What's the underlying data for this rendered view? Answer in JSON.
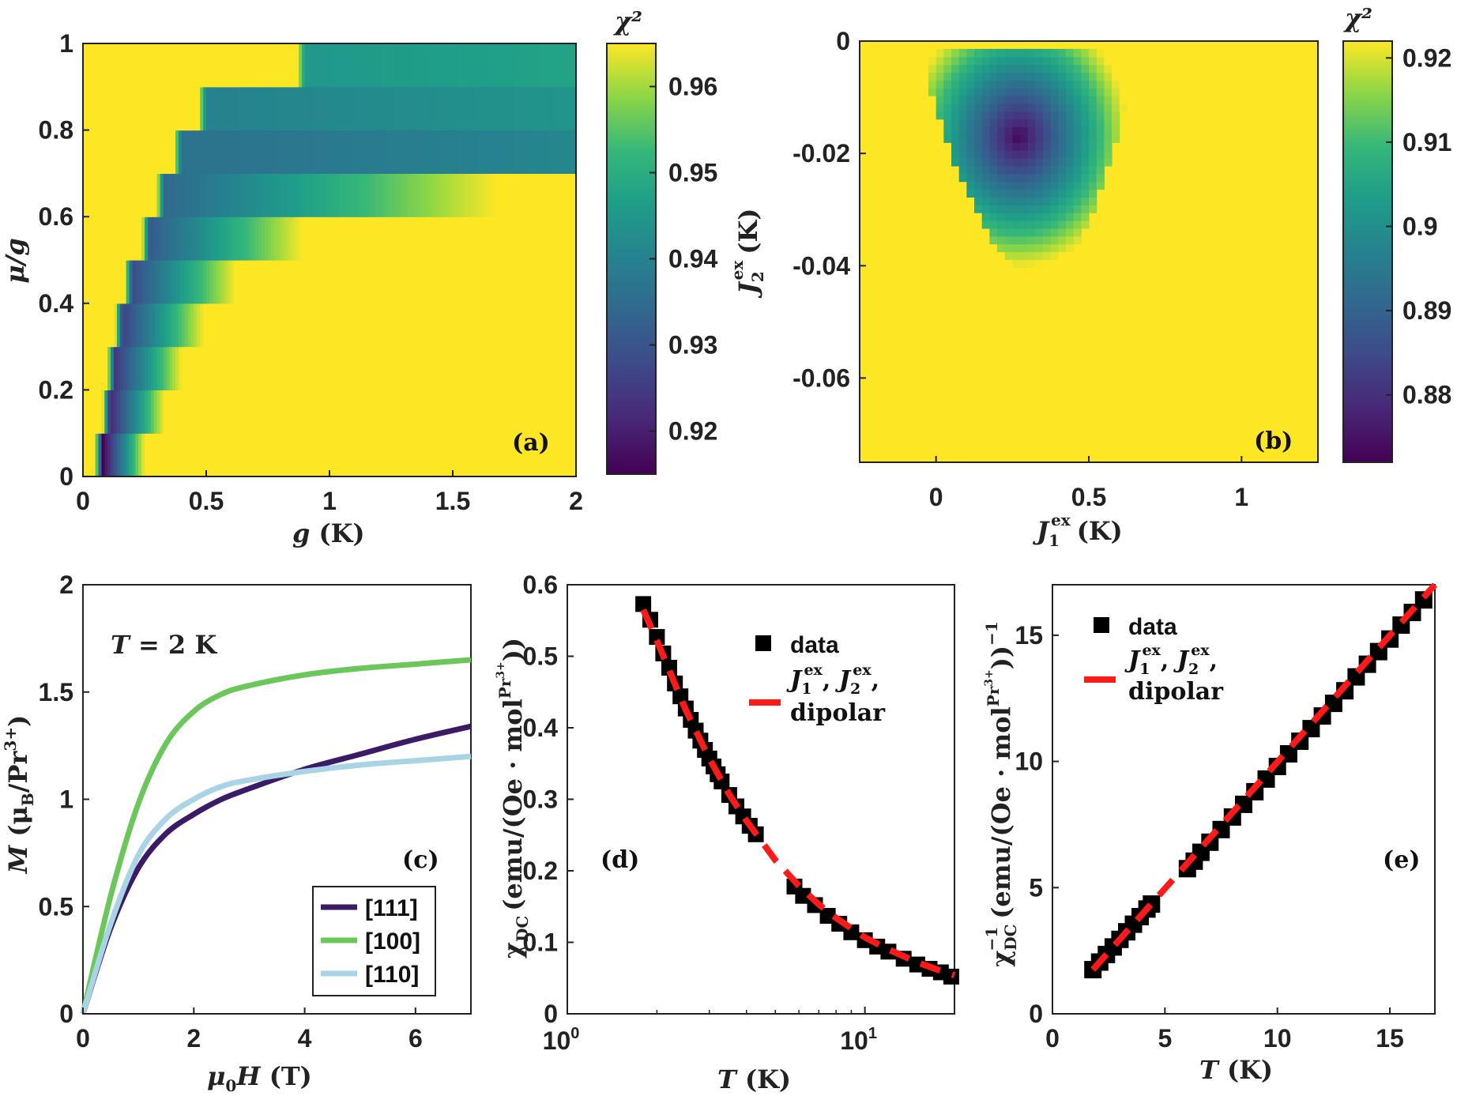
{
  "chart_data": [
    {
      "panel": "(a)",
      "type": "heatmap",
      "xlabel": "g (K)",
      "ylabel": "μ/g",
      "xlim": [
        0,
        2
      ],
      "ylim": [
        0,
        1
      ],
      "xticks": [
        "0",
        "0.5",
        "1",
        "1.5",
        "2"
      ],
      "yticks": [
        "0",
        "0.2",
        "0.4",
        "0.6",
        "0.8",
        "1"
      ],
      "colorbar": {
        "label": "χ²",
        "range": [
          0.915,
          0.965
        ],
        "ticks": [
          "0.92",
          "0.93",
          "0.94",
          "0.95",
          "0.96"
        ]
      },
      "bands": [
        {
          "row": 0,
          "g_min": 0.08,
          "g_width": 0.17,
          "chi_min": 0.915
        },
        {
          "row": 1,
          "g_min": 0.11,
          "g_width": 0.22,
          "chi_min": 0.921
        },
        {
          "row": 2,
          "g_min": 0.13,
          "g_width": 0.27,
          "chi_min": 0.924
        },
        {
          "row": 3,
          "g_min": 0.16,
          "g_width": 0.33,
          "chi_min": 0.926
        },
        {
          "row": 4,
          "g_min": 0.2,
          "g_width": 0.42,
          "chi_min": 0.928
        },
        {
          "row": 5,
          "g_min": 0.27,
          "g_width": 0.62,
          "chi_min": 0.931
        },
        {
          "row": 6,
          "g_min": 0.33,
          "g_width": 1.35,
          "chi_min": 0.934
        },
        {
          "row": 7,
          "g_min": 0.4,
          "g_width": 9.0,
          "chi_min": 0.936
        },
        {
          "row": 8,
          "g_min": 0.5,
          "g_width": 9.0,
          "chi_min": 0.94
        },
        {
          "row": 9,
          "g_min": 0.9,
          "g_width": 9.0,
          "chi_min": 0.945
        }
      ]
    },
    {
      "panel": "(b)",
      "type": "heatmap",
      "xlabel": "J1ex (K)",
      "ylabel": "J2ex (K)",
      "xlim": [
        -0.25,
        1.25
      ],
      "ylim": [
        -0.075,
        0.0
      ],
      "xticks": [
        "0",
        "0.5",
        "1"
      ],
      "yticks": [
        "0",
        "-0.02",
        "-0.04",
        "-0.06"
      ],
      "colorbar": {
        "label": "χ²",
        "range": [
          0.872,
          0.922
        ],
        "ticks": [
          "0.88",
          "0.89",
          "0.9",
          "0.91",
          "0.92"
        ]
      },
      "minimum": {
        "J1": 0.27,
        "J2": -0.017,
        "chi": 0.873
      },
      "region_chi_max": 0.922
    },
    {
      "panel": "(c)",
      "type": "line",
      "annotation": "T = 2 K",
      "xlabel": "μ0H (T)",
      "ylabel": "M (μB/Pr3+)",
      "xlim": [
        0,
        7
      ],
      "ylim": [
        0,
        2
      ],
      "xticks": [
        "0",
        "2",
        "4",
        "6"
      ],
      "yticks": [
        "0",
        "0.5",
        "1",
        "1.5",
        "2"
      ],
      "series": [
        {
          "name": "[111]",
          "color": "#3b1a66",
          "x": [
            0,
            0.5,
            1,
            1.5,
            2,
            2.5,
            3,
            4,
            5,
            6,
            7
          ],
          "y": [
            0,
            0.4,
            0.68,
            0.84,
            0.93,
            1.0,
            1.05,
            1.14,
            1.21,
            1.28,
            1.34
          ]
        },
        {
          "name": "[100]",
          "color": "#6cc75a",
          "x": [
            0,
            0.5,
            1,
            1.5,
            2,
            2.5,
            3,
            4,
            5,
            6,
            7
          ],
          "y": [
            0,
            0.55,
            0.98,
            1.26,
            1.41,
            1.49,
            1.53,
            1.58,
            1.61,
            1.63,
            1.65
          ]
        },
        {
          "name": "[110]",
          "color": "#a8d4e6",
          "x": [
            0,
            0.5,
            1,
            1.5,
            2,
            2.5,
            3,
            4,
            5,
            6,
            7
          ],
          "y": [
            0,
            0.42,
            0.74,
            0.91,
            1.0,
            1.06,
            1.09,
            1.13,
            1.16,
            1.18,
            1.2
          ]
        }
      ]
    },
    {
      "panel": "(d)",
      "type": "scatter",
      "xscale": "log",
      "xlabel": "T (K)",
      "ylabel": "χDC (emu/(Oe · molPr3+))",
      "xlim": [
        1,
        20
      ],
      "ylim": [
        0,
        0.6
      ],
      "xticks": [
        "10^0",
        "10^1"
      ],
      "yticks": [
        "0",
        "0.1",
        "0.2",
        "0.3",
        "0.4",
        "0.5",
        "0.6"
      ],
      "legend": [
        "data",
        "J1ex, J2ex, dipolar"
      ],
      "data_T": [
        1.8,
        1.9,
        2.0,
        2.1,
        2.2,
        2.3,
        2.4,
        2.5,
        2.6,
        2.7,
        2.8,
        2.9,
        3.0,
        3.1,
        3.2,
        3.3,
        3.5,
        3.7,
        3.9,
        4.1,
        4.3,
        5.8,
        6.2,
        6.8,
        7.5,
        8.2,
        9.0,
        10.0,
        11.0,
        12.0,
        13.5,
        15.0,
        16.5,
        18.0,
        19.5
      ],
      "data_chi": [
        0.573,
        0.551,
        0.527,
        0.504,
        0.484,
        0.462,
        0.444,
        0.427,
        0.411,
        0.396,
        0.382,
        0.369,
        0.357,
        0.346,
        0.335,
        0.325,
        0.306,
        0.29,
        0.276,
        0.263,
        0.251,
        0.178,
        0.165,
        0.152,
        0.137,
        0.126,
        0.114,
        0.103,
        0.094,
        0.087,
        0.077,
        0.069,
        0.063,
        0.058,
        0.052
      ],
      "fit_T": [
        1.8,
        2.0,
        2.5,
        3.0,
        3.5,
        4.0,
        5.0,
        6.0,
        7.0,
        8.0,
        10.0,
        12.0,
        15.0,
        18.0,
        20.0
      ],
      "fit_chi": [
        0.565,
        0.522,
        0.425,
        0.357,
        0.307,
        0.27,
        0.215,
        0.179,
        0.153,
        0.134,
        0.107,
        0.09,
        0.072,
        0.06,
        0.054
      ]
    },
    {
      "panel": "(e)",
      "type": "scatter",
      "xlabel": "T (K)",
      "ylabel": "χDC^-1 (emu/(Oe · molPr3+))^-1",
      "xlim": [
        0,
        17
      ],
      "ylim": [
        0,
        17
      ],
      "xticks": [
        "0",
        "5",
        "10",
        "15"
      ],
      "yticks": [
        "0",
        "5",
        "10",
        "15"
      ],
      "legend": [
        "data",
        "J1ex, J2ex, dipolar"
      ],
      "data_T": [
        1.8,
        2.1,
        2.4,
        2.7,
        3.0,
        3.3,
        3.6,
        3.9,
        4.2,
        4.4,
        6.0,
        6.3,
        6.6,
        7.0,
        7.5,
        8.0,
        8.5,
        9.0,
        9.5,
        10.0,
        10.5,
        11.0,
        11.5,
        12.0,
        12.5,
        13.0,
        13.5,
        14.0,
        14.5,
        15.0,
        15.5,
        16.0,
        16.5
      ],
      "data_inv": [
        1.75,
        2.05,
        2.35,
        2.65,
        2.95,
        3.25,
        3.55,
        3.85,
        4.15,
        4.35,
        5.75,
        6.05,
        6.4,
        6.8,
        7.3,
        7.8,
        8.3,
        8.8,
        9.3,
        9.8,
        10.3,
        10.8,
        11.3,
        11.8,
        12.3,
        12.8,
        13.35,
        13.85,
        14.35,
        14.85,
        15.4,
        15.9,
        16.4
      ],
      "fit_T": [
        1.8,
        17.0
      ],
      "fit_inv": [
        1.75,
        17.0
      ]
    }
  ],
  "text": {
    "chi2": "χ²",
    "a_xlabel_g": "g",
    "a_xlabel_unit": "(K)",
    "a_ylabel": "μ/g",
    "b_xlabel_J": "J",
    "b_xlabel_sub": "1",
    "b_xlabel_sup": "ex",
    "b_xlabel_unit": "(K)",
    "b_ylabel_J": "J",
    "b_ylabel_sub": "2",
    "b_ylabel_sup": "ex",
    "b_ylabel_unit": "(K)",
    "c_xlabel_mu": "μ",
    "c_xlabel_sub": "0",
    "c_xlabel_H": "H",
    "c_xlabel_unit": "(T)",
    "c_ylabel_M": "M",
    "c_ylabel_rest": "(μ",
    "c_ylabel_sub": "B",
    "c_ylabel_tail": "/Pr",
    "c_ylabel_sup": "3+",
    "c_ylabel_close": ")",
    "c_annot_T": "T",
    "c_annot_eq": "= 2 K",
    "d_xlabel_T": "T",
    "d_xlabel_unit": "(K)",
    "e_xlabel_T": "T",
    "e_xlabel_unit": "(K)",
    "d_ylabel_chi": "χ",
    "d_ylabel_sub": "DC",
    "d_ylabel_unit": "(emu/(Oe · mol",
    "d_ylabel_sup": "Pr",
    "d_ylabel_sup2": "3+",
    "d_ylabel_close": "))",
    "e_ylabel_chi": "χ",
    "e_ylabel_sub": "DC",
    "e_ylabel_sup": "−1",
    "e_ylabel_unit": "(emu/(Oe · mol",
    "e_ylabel_psup": "Pr",
    "e_ylabel_psup2": "3+",
    "e_ylabel_close": "))",
    "e_ylabel_exp": "−1",
    "legend_data": "data",
    "legend_fit_J": "J",
    "legend_fit_sub1": "1",
    "legend_fit_sub2": "2",
    "legend_fit_ex": "ex",
    "legend_fit_comma": ",",
    "legend_fit_line2": "dipolar",
    "d_xtick_base": "10",
    "d_xtick_exp0": "0",
    "d_xtick_exp1": "1",
    "panel_a": "(a)",
    "panel_b": "(b)",
    "panel_c": "(c)",
    "panel_d": "(d)",
    "panel_e": "(e)"
  }
}
